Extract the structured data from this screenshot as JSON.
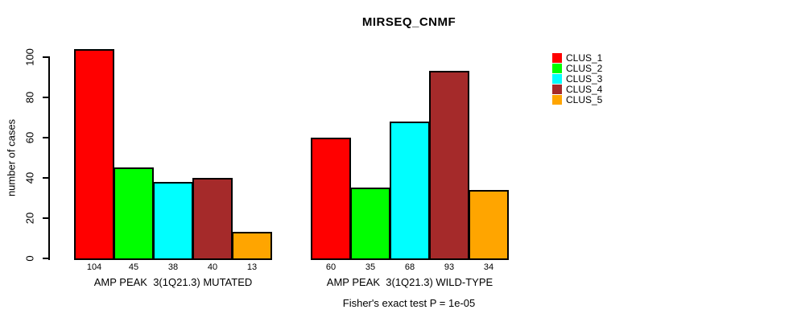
{
  "chart_data": {
    "type": "bar",
    "title": "MIRSEQ_CNMF",
    "ylabel": "number of cases",
    "xlabel": "",
    "ylim": [
      0,
      110
    ],
    "yticks": [
      0,
      20,
      40,
      60,
      80,
      100
    ],
    "grid": false,
    "legend_position": "right-outside",
    "categories": [
      "AMP PEAK  3(1Q21.3) MUTATED",
      "AMP PEAK  3(1Q21.3) WILD-TYPE"
    ],
    "series": [
      {
        "name": "CLUS_1",
        "color": "#FF0000",
        "values": [
          104,
          60
        ]
      },
      {
        "name": "CLUS_2",
        "color": "#00FF00",
        "values": [
          45,
          35
        ]
      },
      {
        "name": "CLUS_3",
        "color": "#00FFFF",
        "values": [
          38,
          68
        ]
      },
      {
        "name": "CLUS_4",
        "color": "#A52A2A",
        "values": [
          40,
          93
        ]
      },
      {
        "name": "CLUS_5",
        "color": "#FFA500",
        "values": [
          13,
          34
        ]
      }
    ],
    "bar_value_labels": [
      [
        104,
        45,
        38,
        40,
        13
      ],
      [
        60,
        35,
        68,
        93,
        34
      ]
    ],
    "annotation": "Fisher's exact test P = 1e-05",
    "bar_border_color": "#000000",
    "axis_color": "#000000"
  }
}
